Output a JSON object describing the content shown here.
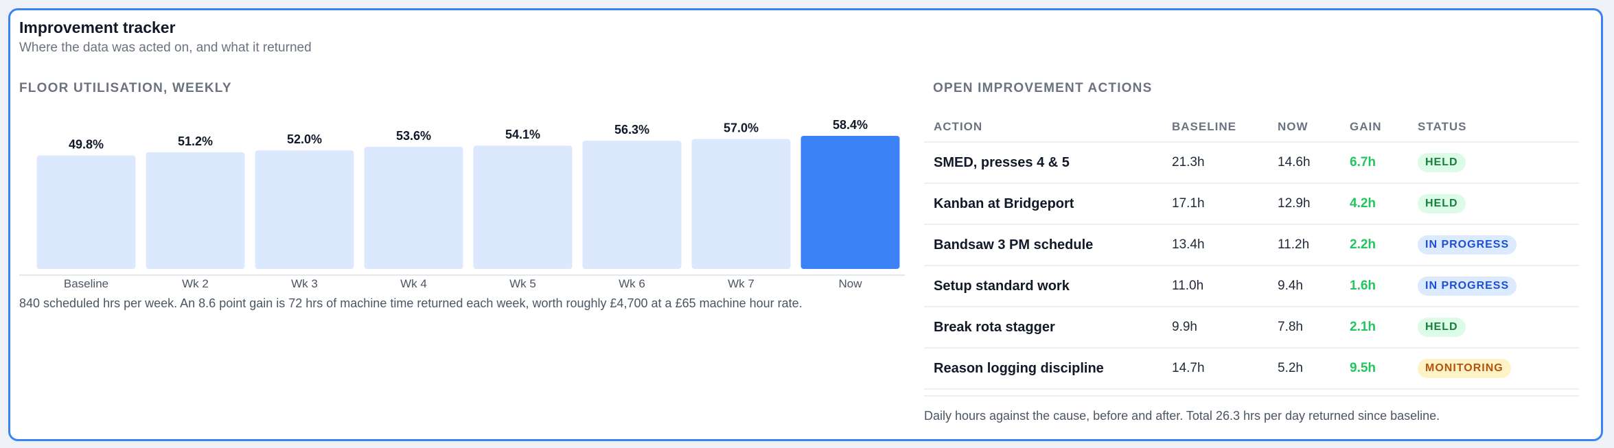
{
  "header": {
    "title": "Improvement tracker",
    "subtitle": "Where the data was acted on, and what it returned"
  },
  "utilisation": {
    "section_label": "FLOOR UTILISATION, WEEKLY",
    "note": "840 scheduled hrs per week. An 8.6 point gain is 72 hrs of machine time returned each week, worth roughly £4,700 at a £65 machine hour rate.",
    "colors": {
      "bar": "#dbe8fd",
      "highlight": "#3b82f6",
      "value_text": "#111827",
      "axis_text": "#4b5563"
    }
  },
  "chart_data": {
    "type": "bar",
    "categories": [
      "Baseline",
      "Wk 2",
      "Wk 3",
      "Wk 4",
      "Wk 5",
      "Wk 6",
      "Wk 7",
      "Now"
    ],
    "values": [
      49.8,
      51.2,
      52.0,
      53.6,
      54.1,
      56.3,
      57.0,
      58.4
    ],
    "value_labels": [
      "49.8%",
      "51.2%",
      "52.0%",
      "53.6%",
      "54.1%",
      "56.3%",
      "57.0%",
      "58.4%"
    ],
    "highlight_index": 7,
    "unit": "%",
    "ylim": [
      0,
      62
    ],
    "grid": false
  },
  "actions": {
    "section_label": "OPEN IMPROVEMENT ACTIONS",
    "columns": [
      "ACTION",
      "BASELINE",
      "NOW",
      "GAIN",
      "STATUS"
    ],
    "rows": [
      {
        "action": "SMED, presses 4 & 5",
        "baseline": "21.3h",
        "now": "14.6h",
        "gain": "6.7h",
        "status": "HELD"
      },
      {
        "action": "Kanban at Bridgeport",
        "baseline": "17.1h",
        "now": "12.9h",
        "gain": "4.2h",
        "status": "HELD"
      },
      {
        "action": "Bandsaw 3 PM schedule",
        "baseline": "13.4h",
        "now": "11.2h",
        "gain": "2.2h",
        "status": "IN PROGRESS"
      },
      {
        "action": "Setup standard work",
        "baseline": "11.0h",
        "now": "9.4h",
        "gain": "1.6h",
        "status": "IN PROGRESS"
      },
      {
        "action": "Break rota stagger",
        "baseline": "9.9h",
        "now": "7.8h",
        "gain": "2.1h",
        "status": "HELD"
      },
      {
        "action": "Reason logging discipline",
        "baseline": "14.7h",
        "now": "5.2h",
        "gain": "9.5h",
        "status": "MONITORING"
      }
    ],
    "status_colors": {
      "HELD": {
        "bg": "#dcfce7",
        "fg": "#15803d"
      },
      "IN PROGRESS": {
        "bg": "#dbeafe",
        "fg": "#1d4ed8"
      },
      "MONITORING": {
        "bg": "#fef3c7",
        "fg": "#b45309"
      }
    },
    "note": "Daily hours against the cause, before and after. Total 26.3 hrs per day returned since baseline."
  }
}
